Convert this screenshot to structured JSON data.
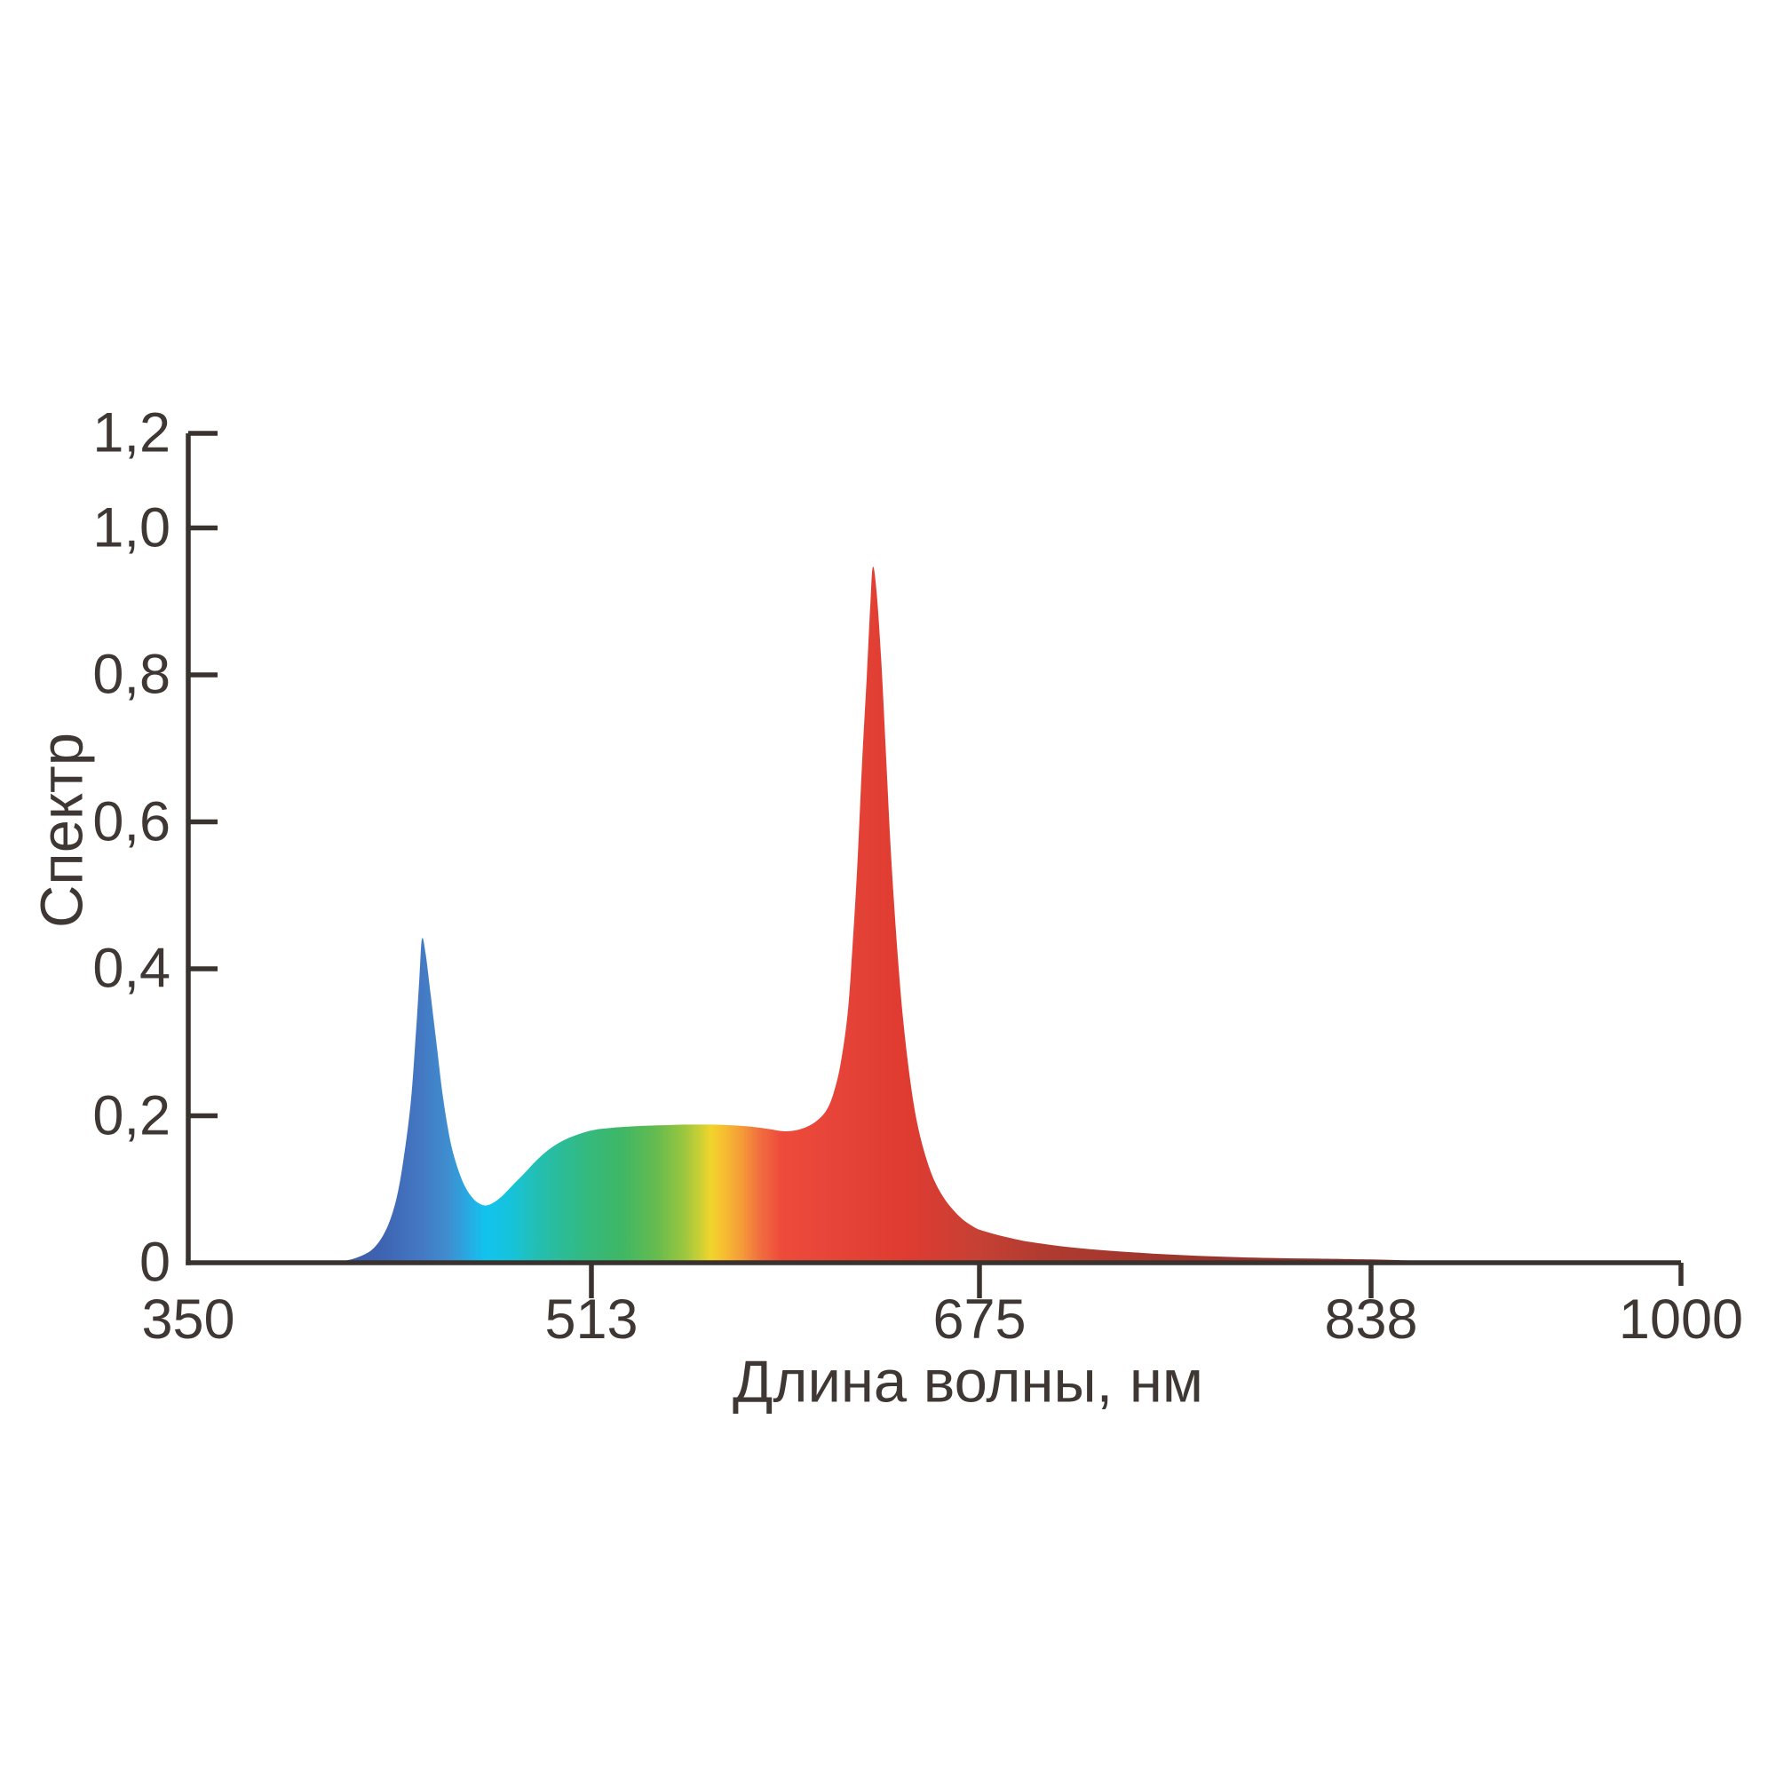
{
  "page": {
    "background": "#FFFFFF"
  },
  "colors": {
    "axis": "#39322E",
    "text": "#3E3733",
    "background": "#FFFFFF"
  },
  "chart_data": {
    "type": "area",
    "title": "",
    "xlabel": "Длина волны, нм",
    "ylabel": "Спектр",
    "xlim": [
      350,
      1000
    ],
    "ylim": [
      0,
      1.2
    ],
    "grid": false,
    "legend": "none",
    "x_ticks": [
      {
        "label": "350",
        "value": 350
      },
      {
        "label": "513",
        "value": 513
      },
      {
        "label": "675",
        "value": 675
      },
      {
        "label": "838",
        "value": 838
      },
      {
        "label": "1000",
        "value": 1000
      }
    ],
    "y_ticks": [
      {
        "label": "0",
        "value": 0
      },
      {
        "label": "0,2",
        "value": 0.2
      },
      {
        "label": "0,4",
        "value": 0.4
      },
      {
        "label": "0,6",
        "value": 0.6
      },
      {
        "label": "0,8",
        "value": 0.8
      },
      {
        "label": "1,0",
        "value": 1.0
      },
      {
        "label": "1,2",
        "value": 1.2
      }
    ],
    "notable_points": [
      {
        "name": "blue-peak",
        "wavelength": 444,
        "value": 0.44
      },
      {
        "name": "cyan-dip",
        "wavelength": 470,
        "value": 0.08
      },
      {
        "name": "green-plateau",
        "wavelength": 560,
        "value": 0.19
      },
      {
        "name": "red-peak",
        "wavelength": 630,
        "value": 0.95
      }
    ],
    "series": [
      {
        "name": "spectrum",
        "points": [
          [
            403,
            0
          ],
          [
            412,
            0.002
          ],
          [
            419,
            0.008
          ],
          [
            425,
            0.02
          ],
          [
            430,
            0.045
          ],
          [
            434,
            0.085
          ],
          [
            437,
            0.14
          ],
          [
            440,
            0.22
          ],
          [
            442,
            0.31
          ],
          [
            443.5,
            0.39
          ],
          [
            444.5,
            0.441
          ],
          [
            446,
            0.42
          ],
          [
            448,
            0.365
          ],
          [
            450.5,
            0.295
          ],
          [
            453,
            0.225
          ],
          [
            456,
            0.165
          ],
          [
            459,
            0.128
          ],
          [
            462,
            0.103
          ],
          [
            465,
            0.088
          ],
          [
            467.5,
            0.081
          ],
          [
            470,
            0.078
          ],
          [
            473,
            0.081
          ],
          [
            477,
            0.091
          ],
          [
            481,
            0.105
          ],
          [
            486,
            0.122
          ],
          [
            491,
            0.14
          ],
          [
            497,
            0.157
          ],
          [
            504,
            0.17
          ],
          [
            513,
            0.18
          ],
          [
            521,
            0.1835
          ],
          [
            530,
            0.1855
          ],
          [
            541,
            0.187
          ],
          [
            552,
            0.188
          ],
          [
            563,
            0.188
          ],
          [
            572,
            0.187
          ],
          [
            580,
            0.185
          ],
          [
            587,
            0.182
          ],
          [
            593,
            0.179
          ],
          [
            598,
            0.18
          ],
          [
            603,
            0.185
          ],
          [
            607,
            0.193
          ],
          [
            611,
            0.207
          ],
          [
            614,
            0.23
          ],
          [
            617,
            0.27
          ],
          [
            620,
            0.34
          ],
          [
            622,
            0.43
          ],
          [
            624,
            0.54
          ],
          [
            626,
            0.68
          ],
          [
            628,
            0.8
          ],
          [
            629.5,
            0.9
          ],
          [
            630.5,
            0.947
          ],
          [
            632,
            0.915
          ],
          [
            634,
            0.82
          ],
          [
            636,
            0.69
          ],
          [
            638,
            0.56
          ],
          [
            640.5,
            0.435
          ],
          [
            643,
            0.335
          ],
          [
            646,
            0.25
          ],
          [
            649,
            0.19
          ],
          [
            652.5,
            0.145
          ],
          [
            656,
            0.113
          ],
          [
            660,
            0.089
          ],
          [
            664,
            0.072
          ],
          [
            668,
            0.059
          ],
          [
            672,
            0.05
          ],
          [
            675,
            0.045
          ],
          [
            680,
            0.04
          ],
          [
            686,
            0.035
          ],
          [
            693,
            0.03
          ],
          [
            701,
            0.026
          ],
          [
            710,
            0.022
          ],
          [
            721,
            0.0185
          ],
          [
            733,
            0.0155
          ],
          [
            747,
            0.0125
          ],
          [
            762,
            0.01
          ],
          [
            778,
            0.008
          ],
          [
            796,
            0.0065
          ],
          [
            816,
            0.0055
          ],
          [
            838,
            0.0045
          ],
          [
            856,
            0.0032
          ],
          [
            874,
            0.0022
          ],
          [
            893,
            0.0013
          ],
          [
            912,
            0.0007
          ],
          [
            935,
            0.0003
          ],
          [
            965,
            0.0001
          ],
          [
            1000,
            0
          ]
        ]
      }
    ],
    "gradient_stops": [
      {
        "wavelength": 403,
        "color": "#3C56A7"
      },
      {
        "wavelength": 428,
        "color": "#3E63B1"
      },
      {
        "wavelength": 444,
        "color": "#4478C3"
      },
      {
        "wavelength": 455,
        "color": "#3F8DCF"
      },
      {
        "wavelength": 463,
        "color": "#27A9E2"
      },
      {
        "wavelength": 470,
        "color": "#12C3EE"
      },
      {
        "wavelength": 480,
        "color": "#16C3DC"
      },
      {
        "wavelength": 490,
        "color": "#22BFB6"
      },
      {
        "wavelength": 501,
        "color": "#2BBC97"
      },
      {
        "wavelength": 513,
        "color": "#36B97B"
      },
      {
        "wavelength": 526,
        "color": "#3FB765"
      },
      {
        "wavelength": 540,
        "color": "#65BB4F"
      },
      {
        "wavelength": 551,
        "color": "#97C63F"
      },
      {
        "wavelength": 558,
        "color": "#C8CF36"
      },
      {
        "wavelength": 563,
        "color": "#F2D42B"
      },
      {
        "wavelength": 569,
        "color": "#F6BB32"
      },
      {
        "wavelength": 576,
        "color": "#F49A38"
      },
      {
        "wavelength": 583,
        "color": "#F1703F"
      },
      {
        "wavelength": 592,
        "color": "#EE4B3B"
      },
      {
        "wavelength": 615,
        "color": "#E64439"
      },
      {
        "wavelength": 645,
        "color": "#DF3B31"
      },
      {
        "wavelength": 675,
        "color": "#C64034"
      },
      {
        "wavelength": 700,
        "color": "#B23B30"
      },
      {
        "wavelength": 740,
        "color": "#A1372D"
      },
      {
        "wavelength": 800,
        "color": "#92322A"
      },
      {
        "wavelength": 880,
        "color": "#833027"
      },
      {
        "wavelength": 1000,
        "color": "#7A2B23"
      }
    ]
  }
}
